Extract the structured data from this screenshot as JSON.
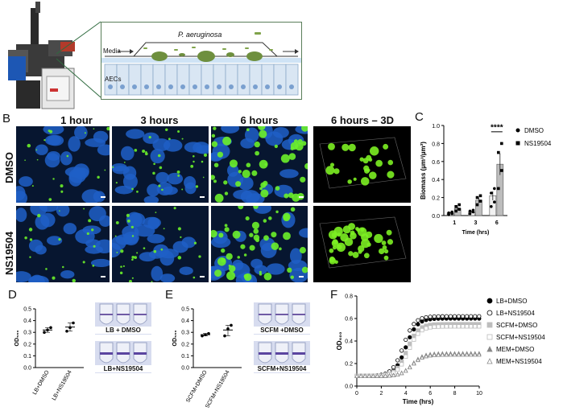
{
  "panels": {
    "A": "A",
    "B": "B",
    "C": "C",
    "D": "D",
    "E": "E",
    "F": "F"
  },
  "panel_a": {
    "organism": "P. aeruginosa",
    "media_label": "Media",
    "cells_label": "AECs"
  },
  "panel_b": {
    "columns": [
      "1 hour",
      "3 hours",
      "6 hours",
      "6 hours – 3D"
    ],
    "rows": [
      "DMSO",
      "NS19504"
    ]
  },
  "panel_d": {
    "tube_top": "LB + DMSO",
    "tube_bottom": "LB+NS19504"
  },
  "panel_e": {
    "tube_top": "SCFM +DMSO",
    "tube_bottom": "SCFM+NS19504"
  },
  "chart_data": [
    {
      "id": "C",
      "type": "bar",
      "categories": [
        "1",
        "3",
        "6"
      ],
      "xlabel": "Time (hrs)",
      "ylabel": "Biomass (µm³/µm²)",
      "ylim": [
        0,
        1.0
      ],
      "yticks": [
        "0.0",
        "0.2",
        "0.4",
        "0.6",
        "0.8",
        "1.0"
      ],
      "annotation": "****",
      "series": [
        {
          "name": "DMSO",
          "marker": "circle",
          "values": [
            0.03,
            0.04,
            0.22
          ],
          "errors": [
            0.005,
            0.01,
            0.05
          ],
          "points": [
            [
              0.01,
              0.02,
              0.03,
              0.04
            ],
            [
              0.02,
              0.04,
              0.05,
              0.06
            ],
            [
              0.1,
              0.15,
              0.25,
              0.3
            ]
          ]
        },
        {
          "name": "NS19504",
          "marker": "square",
          "values": [
            0.08,
            0.17,
            0.57
          ],
          "errors": [
            0.02,
            0.03,
            0.12
          ],
          "points": [
            [
              0.05,
              0.07,
              0.1,
              0.12
            ],
            [
              0.12,
              0.16,
              0.2,
              0.22
            ],
            [
              0.3,
              0.5,
              0.7,
              0.8
            ]
          ]
        }
      ],
      "legend_position": "right"
    },
    {
      "id": "D",
      "type": "scatter",
      "categories": [
        "LB+DMSO",
        "LB+NS19504"
      ],
      "ylabel": "OD₅₉₀",
      "ylim": [
        0,
        0.5
      ],
      "yticks": [
        "0.0",
        "0.1",
        "0.2",
        "0.3",
        "0.4",
        "0.5"
      ],
      "series": [
        {
          "name": "LB+DMSO",
          "points": [
            0.3,
            0.32,
            0.34
          ],
          "mean": 0.32
        },
        {
          "name": "LB+NS19504",
          "points": [
            0.31,
            0.34,
            0.38
          ],
          "mean": 0.345
        }
      ]
    },
    {
      "id": "E",
      "type": "scatter",
      "categories": [
        "SCFM+DMSO",
        "SCFM+NS19504"
      ],
      "ylabel": "OD₅₉₀",
      "ylim": [
        0,
        0.5
      ],
      "yticks": [
        "0.0",
        "0.1",
        "0.2",
        "0.3",
        "0.4",
        "0.5"
      ],
      "series": [
        {
          "name": "SCFM+DMSO",
          "points": [
            0.27,
            0.28,
            0.29
          ],
          "mean": 0.28
        },
        {
          "name": "SCFM+NS19504",
          "points": [
            0.27,
            0.33,
            0.36
          ],
          "mean": 0.32
        }
      ]
    },
    {
      "id": "F",
      "type": "line",
      "xlabel": "Time (hrs)",
      "ylabel": "OD₆₀₀",
      "xlim": [
        0,
        10
      ],
      "ylim": [
        0,
        0.8
      ],
      "xticks": [
        "0",
        "2",
        "4",
        "6",
        "8",
        "10"
      ],
      "yticks": [
        "0.0",
        "0.2",
        "0.4",
        "0.6",
        "0.8"
      ],
      "legend_position": "right",
      "series": [
        {
          "name": "LB+DMSO",
          "marker": "circle-filled",
          "color": "#000000",
          "plateau": 0.6,
          "lag": 4.0
        },
        {
          "name": "LB+NS19504",
          "marker": "circle-open",
          "color": "#000000",
          "plateau": 0.62,
          "lag": 3.8
        },
        {
          "name": "SCFM+DMSO",
          "marker": "square-filled",
          "color": "#bdbdbd",
          "plateau": 0.55,
          "lag": 4.1
        },
        {
          "name": "SCFM+NS19504",
          "marker": "square-open",
          "color": "#bdbdbd",
          "plateau": 0.53,
          "lag": 4.2
        },
        {
          "name": "MEM+DMSO",
          "marker": "triangle-filled",
          "color": "#888888",
          "plateau": 0.29,
          "lag": 4.5
        },
        {
          "name": "MEM+NS19504",
          "marker": "triangle-open",
          "color": "#888888",
          "plateau": 0.28,
          "lag": 4.5
        }
      ]
    }
  ]
}
